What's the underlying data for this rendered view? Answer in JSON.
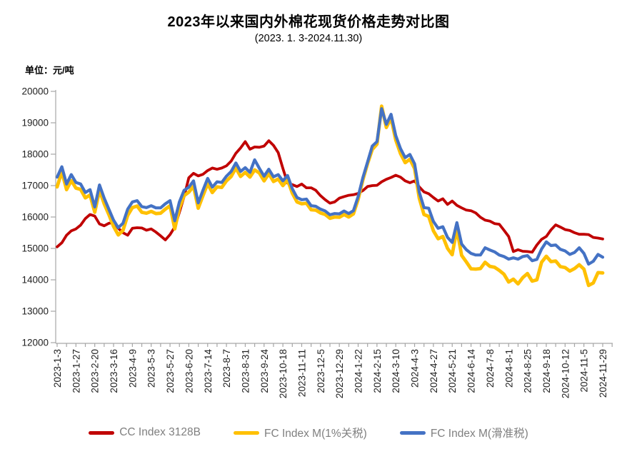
{
  "title": "2023年以来国内外棉花现货价格走势对比图",
  "subtitle": "(2023. 1. 3-2024.11.30)",
  "unit_label": "单位：元/吨",
  "axis_color": "#a6a6a6",
  "chart_data": {
    "type": "line",
    "title": "2023年以来国内外棉花现货价格走势对比图",
    "subtitle": "(2023. 1. 3-2024.11.30)",
    "ylabel": "元/吨",
    "xlabel": "",
    "grid": false,
    "legend_position": "bottom",
    "ylim": [
      12000,
      20000
    ],
    "y_ticks": [
      20000,
      19000,
      18000,
      17000,
      16000,
      15000,
      14000,
      13000,
      12000
    ],
    "x_tick_labels": [
      "2023-1-3",
      "2023-1-27",
      "2023-2-20",
      "2023-3-16",
      "2023-4-9",
      "2023-5-3",
      "2023-5-27",
      "2023-6-20",
      "2023-7-14",
      "2023-8-7",
      "2023-8-31",
      "2023-9-24",
      "2023-10-18",
      "2023-11-11",
      "2023-12-5",
      "2023-12-29",
      "2024-1-22",
      "2024-2-15",
      "2024-3-10",
      "2024-4-3",
      "2024-4-27",
      "2024-5-21",
      "2024-6-14",
      "2024-7-8",
      "2024-8-1",
      "2024-8-25",
      "2024-9-18",
      "2024-10-12",
      "2024-11-5",
      "2024-11-29"
    ],
    "points_per_label_interval": 4,
    "series": [
      {
        "name": "CC Index 3128B",
        "color": "#C00000",
        "values": [
          15050,
          15180,
          15420,
          15560,
          15620,
          15740,
          15950,
          16080,
          16030,
          15780,
          15720,
          15800,
          15820,
          15640,
          15500,
          15420,
          15640,
          15660,
          15650,
          15580,
          15620,
          15520,
          15400,
          15270,
          15440,
          15680,
          16150,
          16650,
          17250,
          17390,
          17310,
          17360,
          17480,
          17560,
          17520,
          17560,
          17630,
          17780,
          18030,
          18200,
          18400,
          18160,
          18230,
          18220,
          18260,
          18430,
          18280,
          18050,
          17550,
          17080,
          17030,
          16970,
          17050,
          16930,
          16930,
          16850,
          16680,
          16550,
          16440,
          16480,
          16600,
          16650,
          16690,
          16710,
          16750,
          16840,
          16970,
          17000,
          17010,
          17120,
          17200,
          17260,
          17330,
          17270,
          17150,
          17090,
          17150,
          16960,
          16800,
          16740,
          16620,
          16510,
          16580,
          16400,
          16510,
          16370,
          16290,
          16220,
          16200,
          16130,
          15990,
          15900,
          15870,
          15790,
          15770,
          15580,
          15380,
          14900,
          14960,
          14910,
          14900,
          14880,
          15110,
          15290,
          15380,
          15590,
          15750,
          15680,
          15600,
          15570,
          15500,
          15450,
          15450,
          15440,
          15350,
          15330,
          15300
        ]
      },
      {
        "name": "FC Index M(1%关税)",
        "color": "#FFC000",
        "values": [
          16960,
          17440,
          16870,
          17160,
          16920,
          16880,
          16610,
          16700,
          16150,
          16850,
          16420,
          16080,
          15700,
          15430,
          15570,
          16050,
          16300,
          16350,
          16150,
          16120,
          16180,
          16110,
          16120,
          16250,
          16360,
          15620,
          16280,
          16680,
          16790,
          16980,
          16280,
          16680,
          17060,
          16780,
          16960,
          16940,
          17150,
          17290,
          17560,
          17290,
          17420,
          17270,
          17500,
          17400,
          17150,
          17380,
          17130,
          17210,
          17000,
          17180,
          16760,
          16480,
          16420,
          16440,
          16230,
          16220,
          16130,
          16080,
          15960,
          16000,
          15990,
          16080,
          16000,
          16100,
          16560,
          17180,
          17700,
          18150,
          18320,
          19530,
          18850,
          19150,
          18450,
          18020,
          17730,
          17840,
          17540,
          16600,
          16080,
          16020,
          15560,
          15310,
          15380,
          15000,
          14800,
          15620,
          14780,
          14570,
          14350,
          14340,
          14360,
          14560,
          14430,
          14400,
          14300,
          14180,
          13930,
          14020,
          13870,
          14070,
          14200,
          13960,
          14000,
          14560,
          14750,
          14580,
          14600,
          14420,
          14390,
          14280,
          14360,
          14480,
          14340,
          13820,
          13900,
          14230,
          14220
        ]
      },
      {
        "name": "FC Index M(滑准税)",
        "color": "#4472C4",
        "values": [
          17270,
          17600,
          17050,
          17350,
          17100,
          17050,
          16780,
          16870,
          16320,
          17020,
          16600,
          16250,
          15900,
          15660,
          15800,
          16250,
          16480,
          16520,
          16330,
          16300,
          16360,
          16290,
          16290,
          16420,
          16520,
          15880,
          16480,
          16850,
          16950,
          17150,
          16450,
          16850,
          17230,
          16950,
          17120,
          17100,
          17300,
          17450,
          17720,
          17450,
          17570,
          17420,
          17820,
          17550,
          17300,
          17520,
          17280,
          17350,
          17150,
          17320,
          16900,
          16620,
          16550,
          16570,
          16360,
          16340,
          16250,
          16190,
          16070,
          16110,
          16100,
          16190,
          16110,
          16200,
          16650,
          17250,
          17750,
          18260,
          18400,
          19450,
          18950,
          19270,
          18590,
          18180,
          17890,
          17990,
          17690,
          16790,
          16300,
          16280,
          15860,
          15640,
          15690,
          15350,
          15190,
          15820,
          15140,
          14960,
          14840,
          14790,
          14790,
          15020,
          14950,
          14890,
          14790,
          14740,
          14660,
          14700,
          14660,
          14740,
          14770,
          14610,
          14650,
          14980,
          15210,
          15090,
          15110,
          14970,
          14920,
          14810,
          14870,
          15020,
          14840,
          14500,
          14590,
          14810,
          14720
        ]
      }
    ]
  },
  "legend": {
    "items": [
      {
        "label": "CC Index 3128B"
      },
      {
        "label": "FC Index M(1%关税)"
      },
      {
        "label": "FC Index M(滑准税)"
      }
    ]
  }
}
